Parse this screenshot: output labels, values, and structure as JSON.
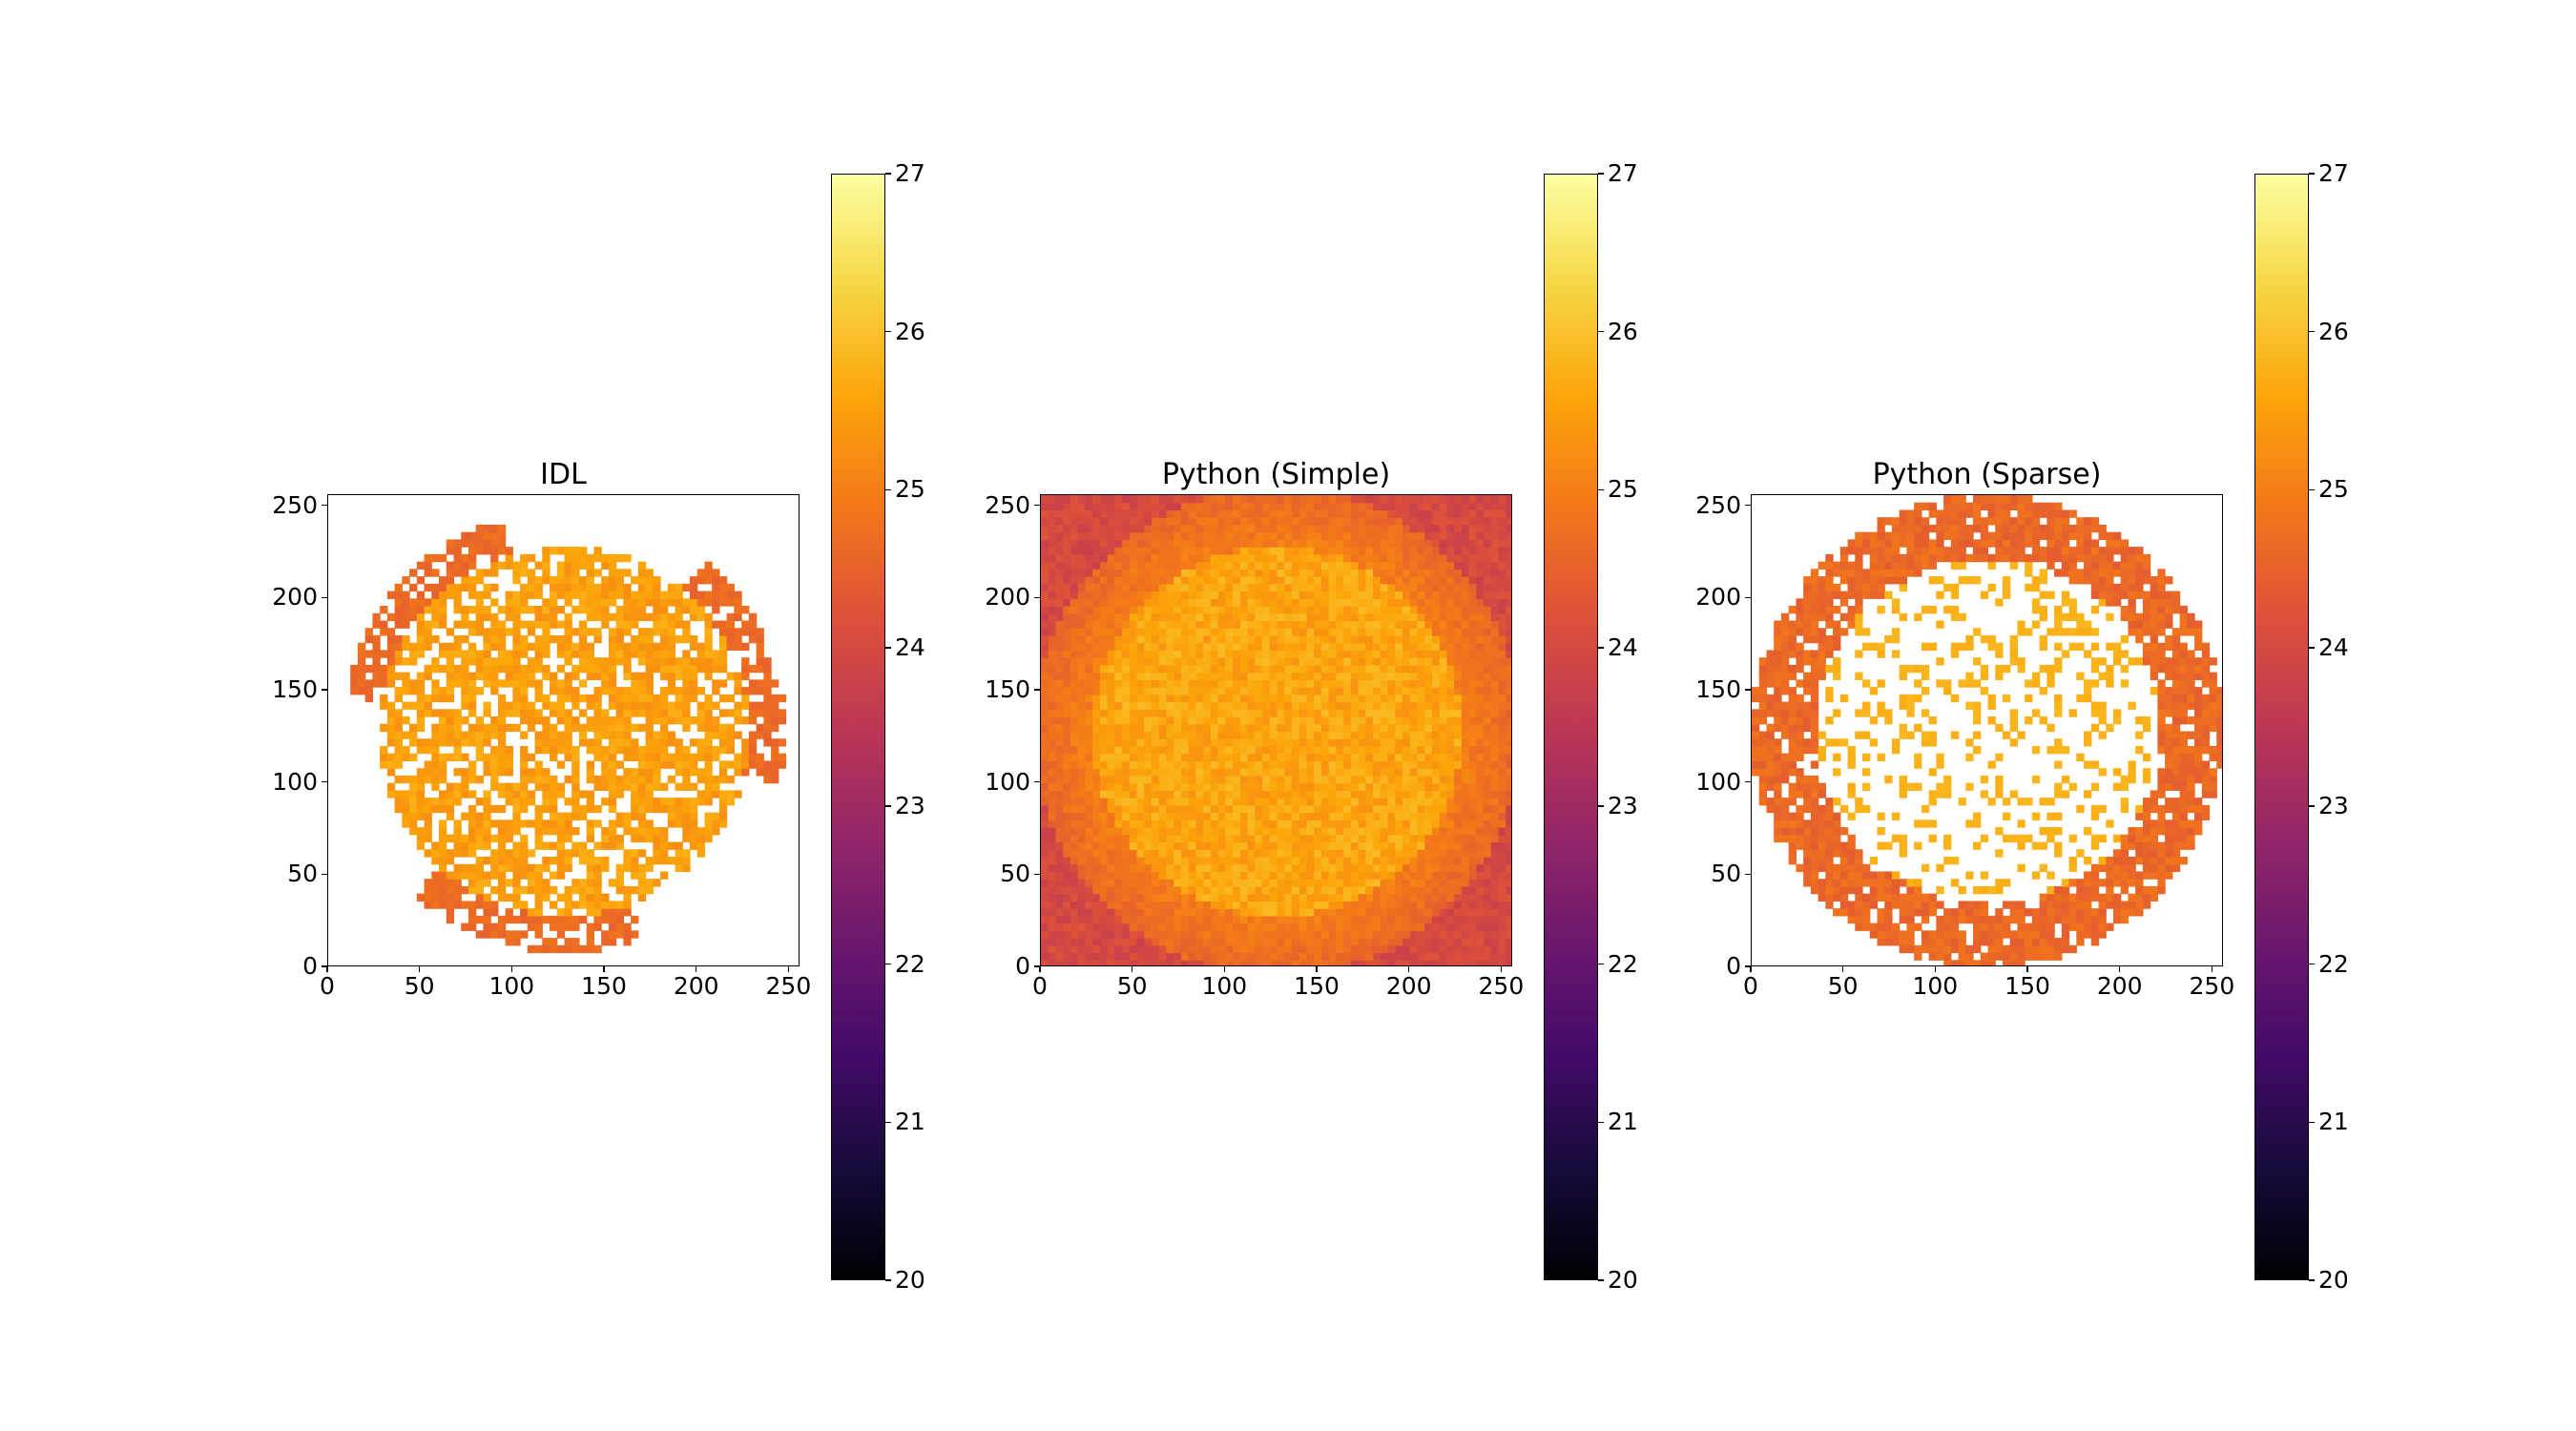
{
  "chart_data": [
    {
      "type": "heatmap",
      "title": "IDL",
      "xlabel": "",
      "ylabel": "",
      "xlim": [
        0,
        256
      ],
      "ylim": [
        0,
        256
      ],
      "x_ticks": [
        "0",
        "50",
        "100",
        "150",
        "200",
        "250"
      ],
      "y_ticks": [
        "0",
        "50",
        "100",
        "150",
        "200",
        "250"
      ],
      "colormap": "inferno",
      "colorbar": {
        "vmin": 20,
        "vmax": 27,
        "ticks": [
          "20",
          "21",
          "22",
          "23",
          "24",
          "25",
          "26",
          "27"
        ]
      },
      "note_visual": "sparse solar disk, many masked (white) pixels, partial off-limb arcs",
      "disk_center": [
        128,
        128
      ],
      "disk_radius": 100,
      "typical_value_disk": 25.4,
      "typical_value_limb": 24.6,
      "coverage": "partial"
    },
    {
      "type": "heatmap",
      "title": "Python (Simple)",
      "xlabel": "",
      "ylabel": "",
      "xlim": [
        0,
        256
      ],
      "ylim": [
        0,
        256
      ],
      "x_ticks": [
        "0",
        "50",
        "100",
        "150",
        "200",
        "250"
      ],
      "y_ticks": [
        "0",
        "50",
        "100",
        "150",
        "200",
        "250"
      ],
      "colormap": "inferno",
      "colorbar": {
        "vmin": 20,
        "vmax": 27,
        "ticks": [
          "20",
          "21",
          "22",
          "23",
          "24",
          "25",
          "26",
          "27"
        ]
      },
      "disk_center": [
        128,
        128
      ],
      "disk_radius": 100,
      "typical_value_disk": 25.6,
      "typical_value_limb": 25.0,
      "typical_value_corner": 24.0,
      "coverage": "full"
    },
    {
      "type": "heatmap",
      "title": "Python (Sparse)",
      "xlabel": "",
      "ylabel": "",
      "xlim": [
        0,
        256
      ],
      "ylim": [
        0,
        256
      ],
      "x_ticks": [
        "0",
        "50",
        "100",
        "150",
        "200",
        "250"
      ],
      "y_ticks": [
        "0",
        "50",
        "100",
        "150",
        "200",
        "250"
      ],
      "colormap": "inferno",
      "colorbar": {
        "vmin": 20,
        "vmax": 27,
        "ticks": [
          "20",
          "21",
          "22",
          "23",
          "24",
          "25",
          "26",
          "27"
        ]
      },
      "disk_center": [
        128,
        128
      ],
      "disk_radius": 100,
      "typical_value_disk": 25.6,
      "typical_value_limb": 24.6,
      "coverage": "sparse"
    }
  ]
}
